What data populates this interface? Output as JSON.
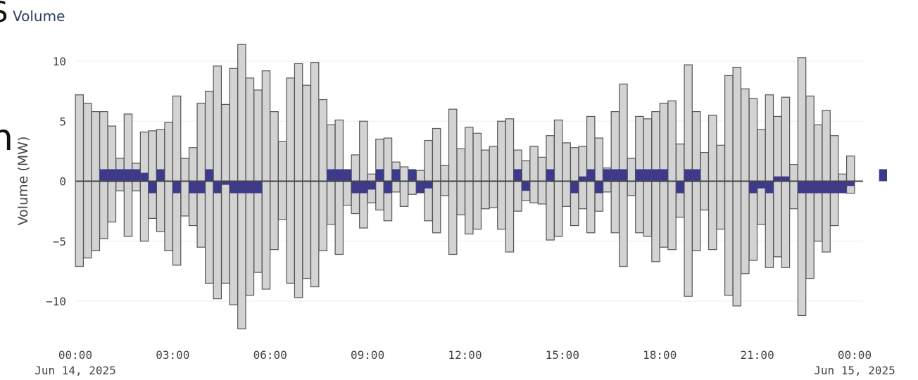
{
  "clipped": {
    "top_glyph": "S",
    "mid_glyph": "n"
  },
  "chart_data": {
    "type": "bar",
    "title": "Volume",
    "xlabel": "",
    "ylabel": "Volume (MW)",
    "ylim": [
      -13.5,
      12.6
    ],
    "yticks": [
      10,
      5,
      0,
      -5,
      -10
    ],
    "ytick_labels": [
      "10",
      "5",
      "0",
      "−5",
      "−10"
    ],
    "xrange": [
      "2025-06-14 00:00",
      "2025-06-15 00:00"
    ],
    "xticks": [
      {
        "t": "2025-06-14 00:00",
        "line1": "00:00",
        "line2": "Jun 14, 2025"
      },
      {
        "t": "2025-06-14 03:00",
        "line1": "03:00",
        "line2": ""
      },
      {
        "t": "2025-06-14 06:00",
        "line1": "06:00",
        "line2": ""
      },
      {
        "t": "2025-06-14 09:00",
        "line1": "09:00",
        "line2": ""
      },
      {
        "t": "2025-06-14 12:00",
        "line1": "12:00",
        "line2": ""
      },
      {
        "t": "2025-06-14 15:00",
        "line1": "15:00",
        "line2": ""
      },
      {
        "t": "2025-06-14 18:00",
        "line1": "18:00",
        "line2": ""
      },
      {
        "t": "2025-06-14 21:00",
        "line1": "21:00",
        "line2": ""
      },
      {
        "t": "2025-06-15 00:00",
        "line1": "00:00",
        "line2": "Jun 15, 2025"
      }
    ],
    "interval_minutes": 15,
    "colors": {
      "bars": "#d3d3d3",
      "bar_edge": "#555555",
      "net": "#3d3a8a",
      "zero_line": "#444444",
      "grid": "#eeeeee"
    },
    "series": [
      {
        "role": "upward",
        "values": [
          7.2,
          6.5,
          5.8,
          5.8,
          4.6,
          1.9,
          5.6,
          1.5,
          4.1,
          4.2,
          4.3,
          4.9,
          7.1,
          1.9,
          2.8,
          6.5,
          7.5,
          9.6,
          6.4,
          9.4,
          11.4,
          8.6,
          7.6,
          9.2,
          5.8,
          3.3,
          8.6,
          9.8,
          8.0,
          9.9,
          6.8,
          4.7,
          5.1,
          0.9,
          2.2,
          5.0,
          0.6,
          3.5,
          3.6,
          1.6,
          1.2,
          0.4,
          0.9,
          3.4,
          4.4,
          1.3,
          6.0,
          2.7,
          4.5,
          4.0,
          2.6,
          2.9,
          5.0,
          5.2,
          2.6,
          1.7,
          2.9,
          2.0,
          3.8,
          5.1,
          3.2,
          2.8,
          2.9,
          5.4,
          3.6,
          1.1,
          5.8,
          8.1,
          1.9,
          5.4,
          5.2,
          5.8,
          6.5,
          6.7,
          3.1,
          9.7,
          5.8,
          2.4,
          5.5,
          3.0,
          8.8,
          9.5,
          7.7,
          6.9,
          4.3,
          7.2,
          5.4,
          7.0,
          1.4,
          10.3,
          7.1,
          4.7,
          5.9,
          3.8,
          0.6,
          2.1
        ]
      },
      {
        "role": "downward",
        "values": [
          -7.1,
          -6.4,
          -5.8,
          -4.8,
          -3.4,
          -0.8,
          -4.6,
          -0.8,
          -5.0,
          -3.1,
          -4.2,
          -5.8,
          -7.0,
          -2.9,
          -3.7,
          -5.5,
          -8.5,
          -9.8,
          -8.5,
          -10.3,
          -12.3,
          -9.5,
          -7.6,
          -9.0,
          -5.7,
          -3.2,
          -8.5,
          -9.7,
          -8.1,
          -8.8,
          -5.8,
          -3.6,
          -6.1,
          -2.0,
          -2.7,
          -3.9,
          -1.8,
          -2.4,
          -3.3,
          -0.9,
          -2.1,
          -1.1,
          -0.9,
          -3.3,
          -4.3,
          -1.2,
          -6.1,
          -2.8,
          -4.4,
          -4.0,
          -2.3,
          -2.2,
          -4.0,
          -5.9,
          -2.5,
          -1.6,
          -1.8,
          -1.9,
          -4.9,
          -4.6,
          -2.1,
          -3.7,
          -2.3,
          -4.3,
          -2.5,
          -0.9,
          -4.3,
          -7.1,
          -1.2,
          -4.3,
          -4.6,
          -6.7,
          -5.5,
          -5.7,
          -3.0,
          -9.6,
          -5.8,
          -2.4,
          -5.7,
          -4.0,
          -9.5,
          -10.4,
          -7.7,
          -6.6,
          -3.6,
          -7.2,
          -6.3,
          -7.2,
          -2.3,
          -11.2,
          -8.1,
          -5.0,
          -5.9,
          -3.7,
          -0.5,
          -1.0
        ]
      },
      {
        "role": "net",
        "values": [
          0,
          0,
          0,
          1,
          1,
          1,
          1,
          1,
          0.7,
          -1,
          1,
          0,
          -1,
          0,
          -1,
          -1,
          1,
          -1,
          -0.3,
          -1,
          -1,
          -1,
          -1,
          0,
          0,
          0,
          0,
          0,
          0,
          0,
          0,
          1,
          1,
          1,
          -1,
          -1,
          -0.7,
          1,
          -1,
          1,
          0,
          1,
          -1,
          -0.6,
          0,
          0,
          0,
          0,
          0,
          0,
          0,
          0,
          0,
          0,
          1,
          -0.8,
          0,
          0,
          1,
          0,
          0,
          -1,
          0.4,
          1,
          -1,
          1,
          1,
          1,
          0,
          1,
          1,
          1,
          1,
          0,
          -1,
          1,
          1,
          0,
          0,
          0,
          0,
          0,
          0,
          -1,
          -0.6,
          -1,
          0.4,
          0.4,
          0,
          -1,
          -1,
          -1,
          -1,
          -1,
          -1,
          -0.4,
          0,
          0,
          0,
          1
        ]
      }
    ]
  }
}
